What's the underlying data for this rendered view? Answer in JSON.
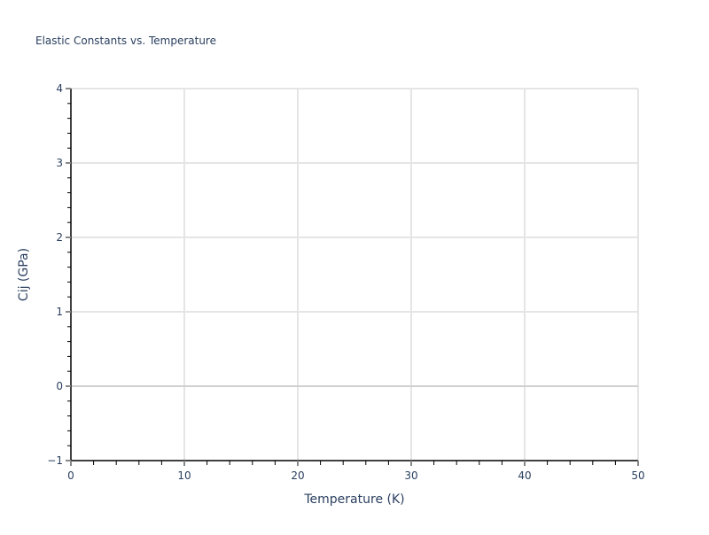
{
  "chart_data": {
    "type": "line",
    "title": "Elastic Constants vs. Temperature",
    "xlabel": "Temperature (K)",
    "ylabel": "Cij (GPa)",
    "xlim": [
      0,
      50
    ],
    "ylim": [
      -1,
      4
    ],
    "x_ticks": [
      0,
      10,
      20,
      30,
      40,
      50
    ],
    "y_ticks": [
      -1,
      0,
      1,
      2,
      3,
      4
    ],
    "x_tick_labels": [
      "0",
      "10",
      "20",
      "30",
      "40",
      "50"
    ],
    "y_tick_labels": [
      "−1",
      "0",
      "1",
      "2",
      "3",
      "4"
    ],
    "x_minor_step": 2,
    "y_minor_step": 0.2,
    "grid": true,
    "series": []
  }
}
